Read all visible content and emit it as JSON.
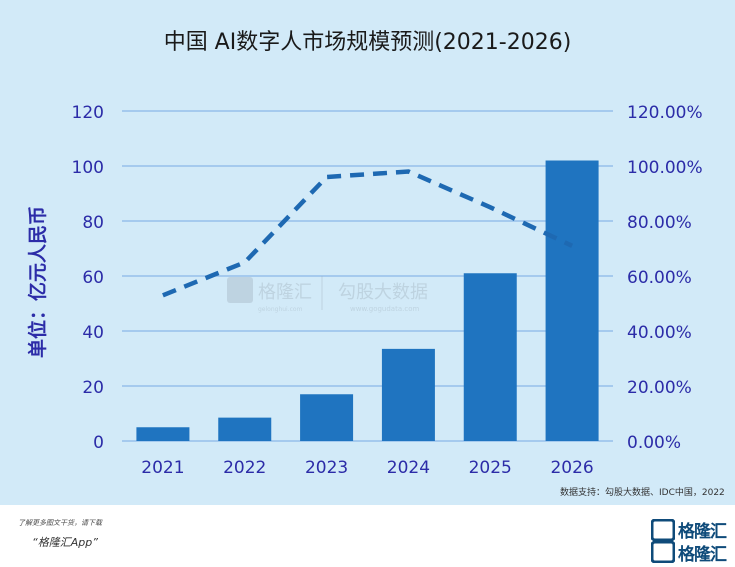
{
  "chart_data": {
    "type": "bar",
    "title": "中国 AI数字人市场规模预测(2021-2026)",
    "ylabel": "单位：亿元人民币",
    "categories": [
      "2021",
      "2022",
      "2023",
      "2024",
      "2025",
      "2026"
    ],
    "series": [
      {
        "type": "bar",
        "values": [
          5,
          8.5,
          17,
          33.5,
          61,
          102
        ]
      },
      {
        "type": "line",
        "style": "dashed",
        "values": [
          0.53,
          0.65,
          0.96,
          0.98,
          0.85,
          0.71
        ]
      }
    ],
    "ylim": [
      0,
      120
    ],
    "yticks": [
      "0",
      "20",
      "40",
      "60",
      "80",
      "100",
      "120"
    ],
    "y2lim": [
      0,
      1.2
    ],
    "y2ticks": [
      "0.00%",
      "20.00%",
      "40.00%",
      "60.00%",
      "80.00%",
      "100.00%",
      "120.00%"
    ],
    "grid": true,
    "colors": {
      "bar": "#1f74c0",
      "line": "#1e69b2",
      "axis_text": "#2c2ca8",
      "grid": "#8ab6e8",
      "background": "#d2eaf8"
    }
  },
  "watermark": {
    "brand": "格隆汇",
    "brand_en": "gelonghui.com",
    "secondary": "勾股大数据",
    "secondary_en": "www.gogudata.com"
  },
  "source": "数据支持：勾股大数据、IDC中国，2022",
  "footer": {
    "line1": "了解更多图文干货，请下载",
    "line2": "“格隆汇App”"
  },
  "logo": {
    "text": "格隆汇",
    "text2": "格隆汇"
  }
}
